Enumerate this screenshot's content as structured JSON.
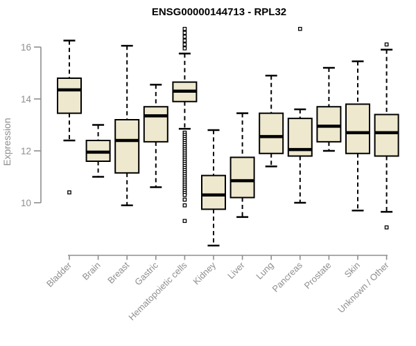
{
  "chart_data": {
    "type": "box",
    "title": "ENSG00000144713 - RPL32",
    "ylabel": "Expression",
    "xlabel": "",
    "y_ticks": [
      10,
      12,
      14,
      16
    ],
    "ylim": [
      8.0,
      17.0
    ],
    "grid": false,
    "legend": false,
    "categories": [
      "Bladder",
      "Brain",
      "Breast",
      "Gastric",
      "Hematopoietic cells",
      "Kidney",
      "Liver",
      "Lung",
      "Pancreas",
      "Prostate",
      "Skin",
      "Unknown / Other"
    ],
    "series": [
      {
        "name": "Bladder",
        "low": 12.4,
        "q1": 13.45,
        "median": 14.35,
        "q3": 14.8,
        "high": 16.25,
        "outliers": [
          10.4
        ]
      },
      {
        "name": "Brain",
        "low": 11.0,
        "q1": 11.6,
        "median": 11.95,
        "q3": 12.4,
        "high": 13.0,
        "outliers": []
      },
      {
        "name": "Breast",
        "low": 9.9,
        "q1": 11.15,
        "median": 12.4,
        "q3": 13.2,
        "high": 16.05,
        "outliers": []
      },
      {
        "name": "Gastric",
        "low": 10.6,
        "q1": 12.35,
        "median": 13.35,
        "q3": 13.7,
        "high": 14.55,
        "outliers": []
      },
      {
        "name": "Hematopoietic cells",
        "low": 12.85,
        "q1": 13.9,
        "median": 14.3,
        "q3": 14.65,
        "high": 15.75,
        "outliers": [
          16.7,
          16.55,
          16.4,
          16.25,
          16.1,
          15.95,
          12.7,
          12.62,
          12.54,
          12.46,
          12.38,
          12.3,
          12.22,
          12.14,
          12.06,
          11.98,
          11.9,
          11.82,
          11.74,
          11.66,
          11.58,
          11.5,
          11.42,
          11.34,
          11.26,
          11.18,
          11.1,
          11.02,
          10.94,
          10.86,
          10.78,
          10.7,
          10.62,
          10.54,
          10.46,
          10.38,
          10.3,
          10.12,
          9.9,
          9.3
        ]
      },
      {
        "name": "Kidney",
        "low": 8.35,
        "q1": 9.75,
        "median": 10.3,
        "q3": 11.05,
        "high": 12.8,
        "outliers": []
      },
      {
        "name": "Liver",
        "low": 9.45,
        "q1": 10.2,
        "median": 10.85,
        "q3": 11.75,
        "high": 13.45,
        "outliers": []
      },
      {
        "name": "Lung",
        "low": 11.4,
        "q1": 11.9,
        "median": 12.55,
        "q3": 13.45,
        "high": 14.9,
        "outliers": []
      },
      {
        "name": "Pancreas",
        "low": 10.0,
        "q1": 11.8,
        "median": 12.05,
        "q3": 13.25,
        "high": 13.6,
        "outliers": [
          16.7
        ]
      },
      {
        "name": "Prostate",
        "low": 12.0,
        "q1": 12.35,
        "median": 12.95,
        "q3": 13.7,
        "high": 15.2,
        "outliers": []
      },
      {
        "name": "Skin",
        "low": 9.7,
        "q1": 11.9,
        "median": 12.7,
        "q3": 13.8,
        "high": 15.45,
        "outliers": []
      },
      {
        "name": "Unknown / Other",
        "low": 9.65,
        "q1": 11.8,
        "median": 12.7,
        "q3": 13.4,
        "high": 15.9,
        "outliers": [
          16.1,
          9.05
        ]
      }
    ],
    "colors": {
      "box_fill": "#EDE8CE",
      "box_stroke": "#000000",
      "median": "#000000",
      "whisker": "#000000",
      "outlier_stroke": "#000000",
      "outlier_fill": "#FFFFFF",
      "axis": "#8E8E8E",
      "tick_label": "#8E8E8E",
      "title": "#000000",
      "background": "#FFFFFF"
    }
  }
}
